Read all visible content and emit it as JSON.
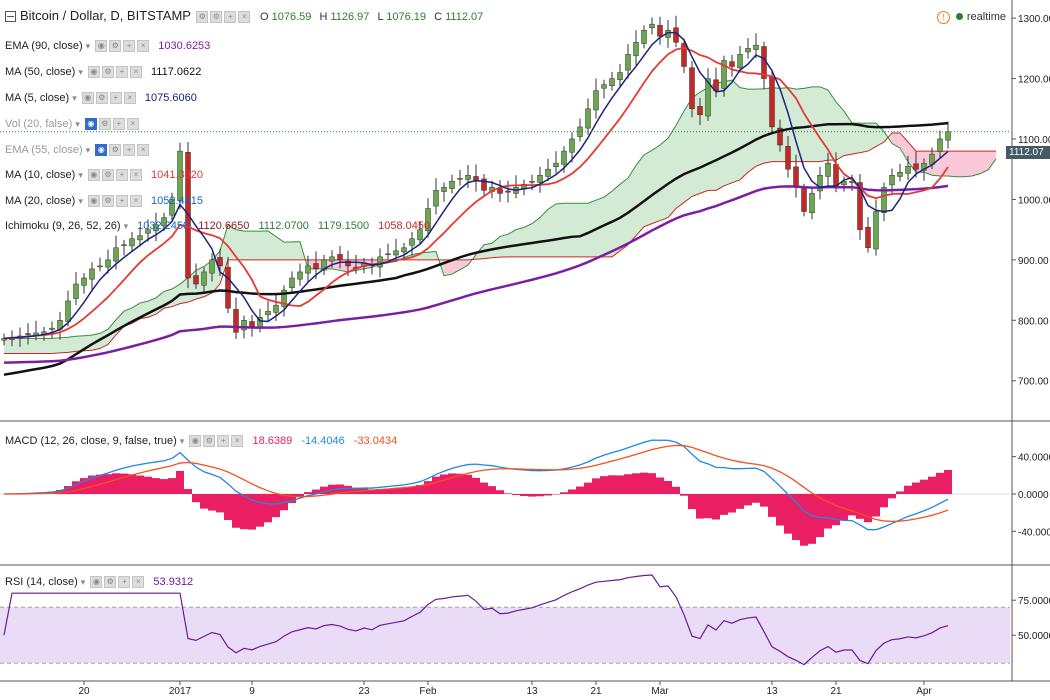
{
  "header": {
    "symbol": "Bitcoin / Dollar, D, BITSTAMP",
    "o_label": "O",
    "o_value": "1076.59",
    "h_label": "H",
    "h_value": "1126.97",
    "l_label": "L",
    "l_value": "1076.19",
    "c_label": "C",
    "c_value": "1112.07",
    "realtime": "realtime"
  },
  "indicators": {
    "ema90": {
      "label": "EMA (90, close)",
      "value": "1030.6253",
      "color": "#7b1fa2"
    },
    "ma50": {
      "label": "MA (50, close)",
      "value": "1117.0622",
      "color": "#111111"
    },
    "ma5": {
      "label": "MA (5, close)",
      "value": "1075.6060",
      "color": "#1a237e"
    },
    "vol": {
      "label": "Vol (20, false)"
    },
    "ema55": {
      "label": "EMA (55, close)"
    },
    "ma10": {
      "label": "MA (10, close)",
      "value": "1041.3920",
      "color": "#e53935"
    },
    "ma20": {
      "label": "MA (20, close)",
      "value": "1052.4415",
      "color": "#1565c0"
    },
    "ichimoku": {
      "label": "Ichimoku (9, 26, 52, 26)",
      "v1": "1032.2450",
      "v2": "1120.6650",
      "v3": "1112.0700",
      "v4": "1179.1500",
      "v5": "1058.0450"
    },
    "macd": {
      "label": "MACD (12, 26, close, 9, false, true)",
      "hist": "18.6389",
      "macd": "-14.4046",
      "signal": "-33.0434"
    },
    "rsi": {
      "label": "RSI (14, close)",
      "value": "53.9312"
    }
  },
  "price_tag": "1112.07",
  "chart_data": {
    "type": "candlestick",
    "price_axis": [
      "1300.00",
      "1200.00",
      "1100.00",
      "1000.00",
      "900.00",
      "800.00",
      "700.00"
    ],
    "price_ylim": [
      635,
      1330
    ],
    "macd_axis": [
      "40.0000",
      "0.0000",
      "-40.0000"
    ],
    "macd_ylim": [
      -75,
      75
    ],
    "rsi_axis": [
      "75.0000",
      "50.0000"
    ],
    "rsi_ylim": [
      18,
      98
    ],
    "rsi_levels": [
      70,
      30
    ],
    "date_axis": [
      "20",
      "2017",
      "9",
      "23",
      "Feb",
      "13",
      "21",
      "Mar",
      "13",
      "21",
      "Apr"
    ],
    "date_ticks": [
      10,
      22,
      31,
      45,
      53,
      66,
      74,
      82,
      96,
      104,
      115
    ],
    "closes": [
      770,
      772,
      774,
      777,
      779,
      781,
      787,
      800,
      832,
      860,
      870,
      885,
      890,
      900,
      920,
      925,
      935,
      940,
      950,
      958,
      970,
      1000,
      1080,
      870,
      860,
      880,
      900,
      890,
      820,
      780,
      800,
      790,
      805,
      815,
      825,
      850,
      870,
      880,
      890,
      885,
      900,
      905,
      900,
      890,
      885,
      895,
      890,
      905,
      910,
      915,
      920,
      935,
      950,
      985,
      1015,
      1020,
      1030,
      1035,
      1040,
      1030,
      1015,
      1020,
      1010,
      1012,
      1020,
      1025,
      1030,
      1040,
      1050,
      1060,
      1080,
      1100,
      1120,
      1150,
      1180,
      1190,
      1200,
      1210,
      1240,
      1260,
      1280,
      1290,
      1270,
      1280,
      1260,
      1220,
      1150,
      1140,
      1200,
      1180,
      1230,
      1220,
      1240,
      1250,
      1255,
      1200,
      1120,
      1090,
      1050,
      1020,
      980,
      1010,
      1040,
      1060,
      1020,
      1030,
      1030,
      950,
      920,
      980,
      1020,
      1040,
      1045,
      1055,
      1050,
      1060,
      1075,
      1100,
      1112
    ],
    "series": [
      {
        "name": "MA (50, close)",
        "color": "#111111"
      },
      {
        "name": "EMA (90, close)",
        "color": "#7b1fa2"
      },
      {
        "name": "MA (10, close)",
        "color": "#e53935"
      },
      {
        "name": "MA (5, close)",
        "color": "#1a237e"
      }
    ],
    "colors": {
      "up": "#6aa84f",
      "down": "#c62828",
      "wick": "#333333",
      "cloud_up": "#c8e6c9",
      "cloud_down": "#f8bbd0",
      "macd": "#1e88e5",
      "signal": "#f4511e",
      "hist": "#e91e63",
      "rsi": "#6a1b9a",
      "rsi_band": "#eadcf7"
    }
  }
}
